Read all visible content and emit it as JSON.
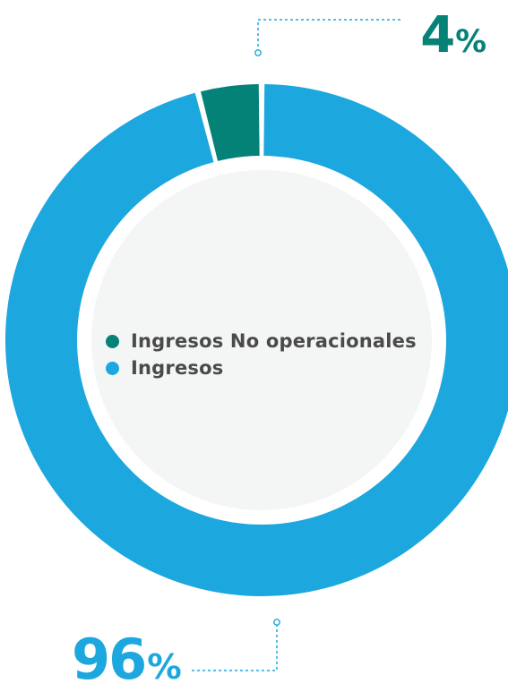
{
  "chart_data": {
    "type": "pie",
    "variant": "donut",
    "title": "",
    "series": [
      {
        "name": "Ingresos No operacionales",
        "value": 4,
        "label": "4",
        "color": "#058278"
      },
      {
        "name": "Ingresos",
        "value": 96,
        "label": "96",
        "color": "#1ca7de"
      }
    ],
    "percent_sign": "%",
    "legend": "center"
  },
  "colors": {
    "center_fill": "#f4f5f5",
    "leader_line": "#1ca7de",
    "legend_text": "#4a4a4a"
  }
}
